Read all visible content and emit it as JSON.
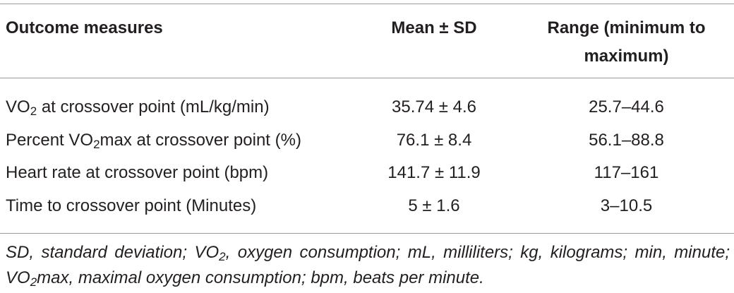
{
  "table": {
    "header": [
      "Outcome measures",
      "Mean ± SD",
      "Range (minimum to maximum)"
    ],
    "rows": [
      [
        [
          "VO",
          "2",
          " at crossover point (mL/kg/min)"
        ],
        "35.74 ± 4.6",
        "25.7–44.6"
      ],
      [
        [
          "Percent VO",
          "2",
          "max at crossover point (%)"
        ],
        "76.1 ± 8.4",
        "56.1–88.8"
      ],
      [
        [
          "Heart rate at crossover point (bpm)"
        ],
        "141.7 ± 11.9",
        "117–161"
      ],
      [
        [
          "Time to crossover point (Minutes)"
        ],
        "5 ± 1.6",
        "3–10.5"
      ]
    ]
  },
  "footnote": [
    "SD, standard deviation; VO",
    "2",
    ", oxygen consumption; mL, milliliters; kg, kilograms; min, minute; VO",
    "2",
    "max, maximal oxygen consumption; bpm, beats per minute."
  ]
}
